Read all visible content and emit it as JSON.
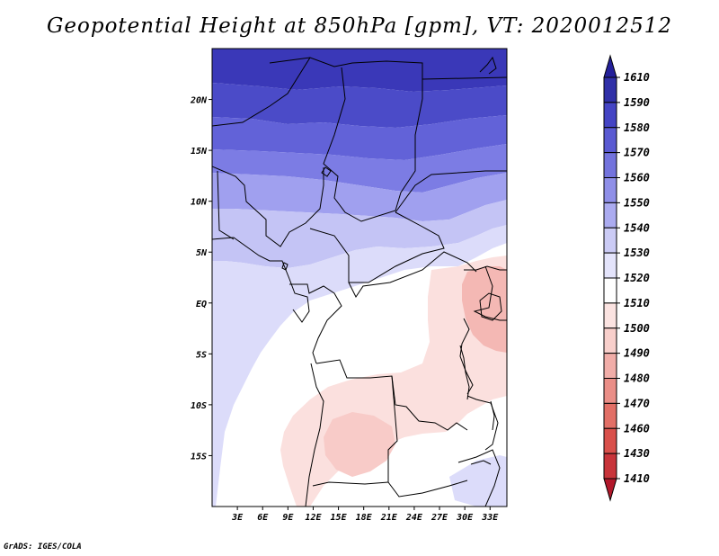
{
  "title": "Geopotential Height at 850hPa [gpm], VT: 2020012512",
  "credit": "GrADS: IGES/COLA",
  "map": {
    "lat_labels": [
      "20N",
      "15N",
      "10N",
      "5N",
      "EQ",
      "5S",
      "10S",
      "15S"
    ],
    "lat_values": [
      20,
      15,
      10,
      5,
      0,
      -5,
      -10,
      -15
    ],
    "lon_labels": [
      "3E",
      "6E",
      "9E",
      "12E",
      "15E",
      "18E",
      "21E",
      "24E",
      "27E",
      "30E",
      "33E"
    ],
    "lon_values": [
      3,
      6,
      9,
      12,
      15,
      18,
      21,
      24,
      27,
      30,
      33
    ],
    "lon_range": [
      0,
      35
    ],
    "lat_range": [
      -20,
      25
    ]
  },
  "colorbar": {
    "levels": [
      "1410",
      "1430",
      "1460",
      "1470",
      "1480",
      "1490",
      "1500",
      "1510",
      "1520",
      "1530",
      "1540",
      "1550",
      "1560",
      "1570",
      "1580",
      "1590",
      "1610"
    ],
    "colors": [
      "#b2182b",
      "#c8343a",
      "#d9504b",
      "#e26f66",
      "#ea8e87",
      "#f1ada8",
      "#f8cfcb",
      "#fbe3e1",
      "#ffffff",
      "#e4e4fb",
      "#cbcbf5",
      "#ababf0",
      "#8f8fe8",
      "#7373dd",
      "#5a5ad2",
      "#4444c4",
      "#3030a8",
      "#24209a"
    ]
  }
}
